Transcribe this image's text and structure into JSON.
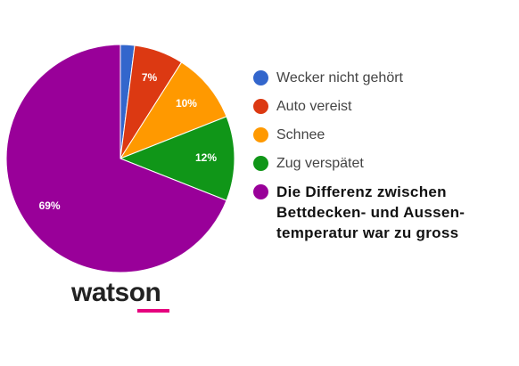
{
  "chart_data": {
    "type": "pie",
    "categories": [
      "Wecker nicht gehört",
      "Auto vereist",
      "Schnee",
      "Zug verspätet",
      "Die Differenz zwischen Bettdecken- und Aussen­temperatur war zu gross"
    ],
    "values": [
      2,
      7,
      10,
      12,
      69
    ],
    "value_labels": [
      null,
      "7%",
      "10%",
      "12%",
      "69%"
    ],
    "colors": [
      "#3366cc",
      "#dc3912",
      "#ff9900",
      "#109618",
      "#990099"
    ],
    "brand": "watson"
  }
}
